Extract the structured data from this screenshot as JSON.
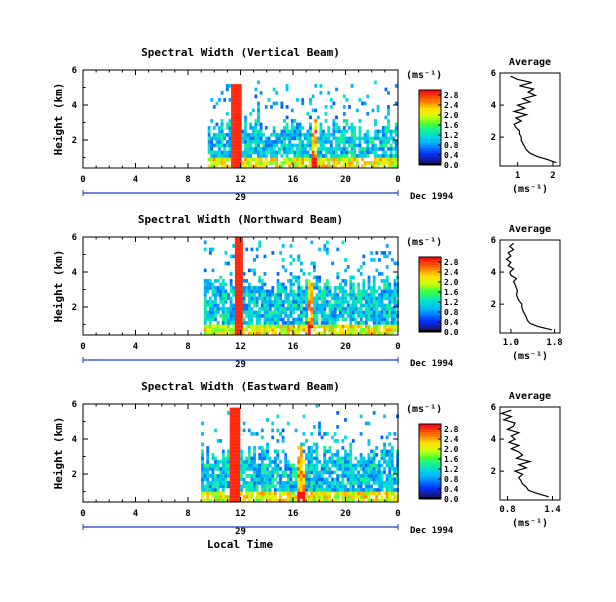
{
  "page": {
    "x_axis_label": "Local Time",
    "date_label": "Dec 1994",
    "day_label": "29",
    "colorbar_unit": "(ms⁻¹)",
    "profile_title": "Average",
    "profile_xlabel": "(ms⁻¹)",
    "y_axis_label": "Height (km)"
  },
  "chart_data": [
    {
      "type": "heatmap",
      "title": "Spectral Width (Vertical Beam)",
      "ylabel": "Height (km)",
      "xlabel": "Local Time",
      "x_ticks": [
        "0",
        "4",
        "8",
        "12",
        "16",
        "20",
        "0"
      ],
      "y_ticks": [
        "2",
        "4",
        "6"
      ],
      "xlim": [
        0,
        24
      ],
      "ylim": [
        0.4,
        6.0
      ],
      "colorbar": {
        "ticks": [
          "0.0",
          "0.4",
          "0.8",
          "1.2",
          "1.6",
          "2.0",
          "2.4",
          "2.8"
        ],
        "range": [
          0,
          3.0
        ]
      },
      "profile": {
        "title": "Average",
        "x_ticks": [
          "1",
          "2"
        ],
        "xlim": [
          0.5,
          2.2
        ],
        "y_ticks": [
          "2",
          "4",
          "6"
        ],
        "heights": [
          0.4,
          0.6,
          0.8,
          1.0,
          1.2,
          1.4,
          1.6,
          1.8,
          2.0,
          2.2,
          2.4,
          2.6,
          2.8,
          3.0,
          3.2,
          3.4,
          3.6,
          3.8,
          4.0,
          4.2,
          4.4,
          4.6,
          4.8,
          5.0,
          5.2,
          5.4,
          5.6,
          5.8
        ],
        "values": [
          2.1,
          1.85,
          1.55,
          1.35,
          1.25,
          1.2,
          1.15,
          1.1,
          1.1,
          1.05,
          1.05,
          0.95,
          0.9,
          1.1,
          0.95,
          1.25,
          0.9,
          1.2,
          1.0,
          1.35,
          1.15,
          1.5,
          1.3,
          1.45,
          1.05,
          1.4,
          1.0,
          0.8
        ]
      },
      "features": {
        "data_start_hour": 9.5,
        "spike_hour": 11.6,
        "spike_top_km": 5.2,
        "secondary_hour": 17.5,
        "mean_top_km": 2.6
      }
    },
    {
      "type": "heatmap",
      "title": "Spectral Width (Northward Beam)",
      "ylabel": "Height (km)",
      "xlabel": "Local Time",
      "x_ticks": [
        "0",
        "4",
        "8",
        "12",
        "16",
        "20",
        "0"
      ],
      "y_ticks": [
        "2",
        "4",
        "6"
      ],
      "xlim": [
        0,
        24
      ],
      "ylim": [
        0.4,
        6.0
      ],
      "colorbar": {
        "ticks": [
          "0.0",
          "0.4",
          "0.8",
          "1.2",
          "1.6",
          "2.0",
          "2.4",
          "2.8"
        ],
        "range": [
          0,
          3.0
        ]
      },
      "profile": {
        "title": "Average",
        "x_ticks": [
          "1.0",
          "1.8"
        ],
        "xlim": [
          0.8,
          1.9
        ],
        "y_ticks": [
          "2",
          "4",
          "6"
        ],
        "heights": [
          0.4,
          0.6,
          0.8,
          1.0,
          1.2,
          1.4,
          1.6,
          1.8,
          2.0,
          2.2,
          2.4,
          2.6,
          2.8,
          3.0,
          3.2,
          3.4,
          3.6,
          3.8,
          4.0,
          4.2,
          4.4,
          4.6,
          4.8,
          5.0,
          5.2,
          5.4,
          5.6,
          5.8
        ],
        "values": [
          1.75,
          1.5,
          1.35,
          1.3,
          1.28,
          1.25,
          1.22,
          1.2,
          1.2,
          1.15,
          1.12,
          1.1,
          1.12,
          1.1,
          1.08,
          1.05,
          1.1,
          1.0,
          0.98,
          1.05,
          0.95,
          1.0,
          0.92,
          1.0,
          0.95,
          1.05,
          0.98,
          1.05
        ]
      },
      "features": {
        "data_start_hour": 9.2,
        "spike_hour": 11.8,
        "spike_top_km": 6.0,
        "secondary_hour": 17.2,
        "mean_top_km": 3.2
      }
    },
    {
      "type": "heatmap",
      "title": "Spectral Width (Eastward Beam)",
      "ylabel": "Height (km)",
      "xlabel": "Local Time",
      "x_ticks": [
        "0",
        "4",
        "8",
        "12",
        "16",
        "20",
        "0"
      ],
      "y_ticks": [
        "2",
        "4",
        "6"
      ],
      "xlim": [
        0,
        24
      ],
      "ylim": [
        0.4,
        6.0
      ],
      "colorbar": {
        "ticks": [
          "0.0",
          "0.4",
          "0.8",
          "1.2",
          "1.6",
          "2.0",
          "2.4",
          "2.8"
        ],
        "range": [
          0,
          3.0
        ]
      },
      "profile": {
        "title": "Average",
        "x_ticks": [
          "0.8",
          "1.4"
        ],
        "xlim": [
          0.7,
          1.5
        ],
        "y_ticks": [
          "2",
          "4",
          "6"
        ],
        "heights": [
          0.4,
          0.6,
          0.8,
          1.0,
          1.2,
          1.4,
          1.6,
          1.8,
          2.0,
          2.2,
          2.4,
          2.6,
          2.8,
          3.0,
          3.2,
          3.4,
          3.6,
          3.8,
          4.0,
          4.2,
          4.4,
          4.6,
          4.8,
          5.0,
          5.2,
          5.4,
          5.6,
          5.8
        ],
        "values": [
          1.35,
          1.2,
          1.08,
          1.05,
          1.0,
          0.98,
          0.95,
          1.0,
          0.9,
          1.05,
          0.95,
          1.1,
          0.92,
          1.0,
          0.95,
          0.85,
          0.95,
          0.82,
          0.9,
          0.85,
          0.95,
          0.8,
          0.88,
          0.9,
          0.75,
          0.85,
          0.72,
          0.85
        ]
      },
      "features": {
        "data_start_hour": 9.0,
        "spike_hour": 11.5,
        "spike_top_km": 5.8,
        "secondary_hour": 16.5,
        "mean_top_km": 3.1
      }
    }
  ]
}
